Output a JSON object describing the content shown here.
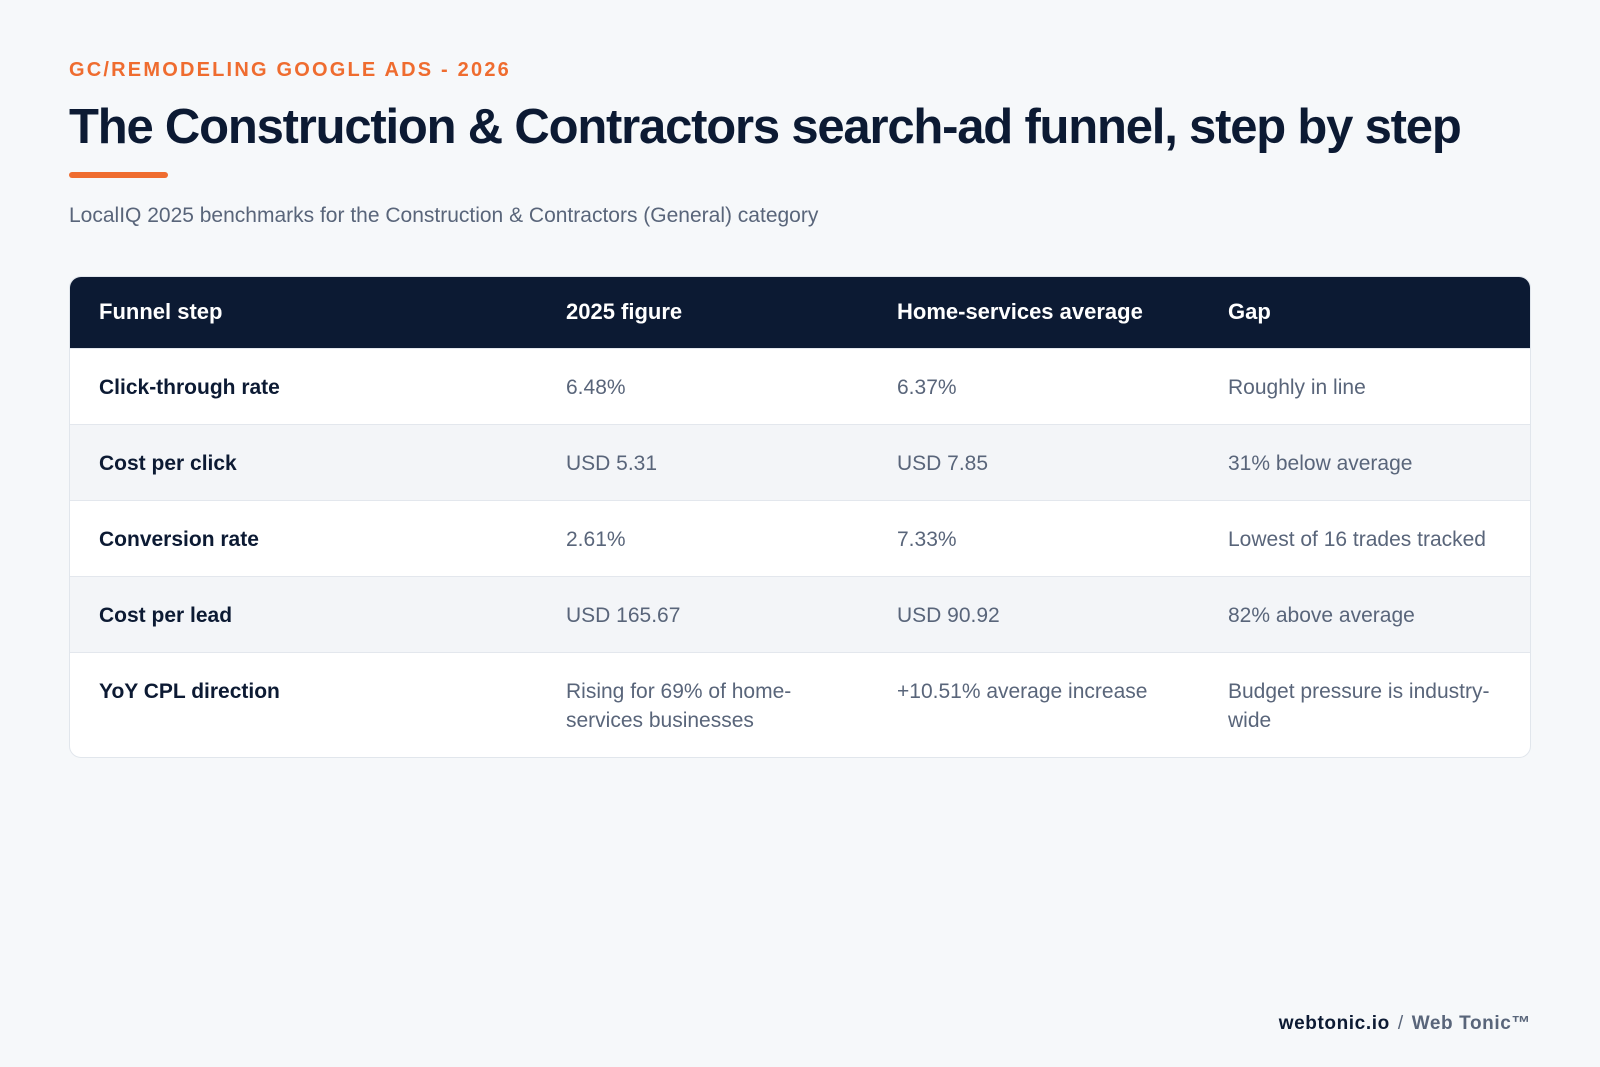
{
  "header": {
    "eyebrow": "GC/REMODELING GOOGLE ADS - 2026",
    "title": "The Construction & Contractors search-ad funnel, step by step",
    "subtitle": "LocalIQ 2025 benchmarks for the Construction & Contractors (General) category"
  },
  "table": {
    "columns": [
      "Funnel step",
      "2025 figure",
      "Home-services average",
      "Gap"
    ],
    "rows": [
      [
        "Click-through rate",
        "6.48%",
        "6.37%",
        "Roughly in line"
      ],
      [
        "Cost per click",
        "USD 5.31",
        "USD 7.85",
        "31% below average"
      ],
      [
        "Conversion rate",
        "2.61%",
        "7.33%",
        "Lowest of 16 trades tracked"
      ],
      [
        "Cost per lead",
        "USD 165.67",
        "USD 90.92",
        "82% above average"
      ],
      [
        "YoY CPL direction",
        "Rising for 69% of home-services businesses",
        "+10.51% average increase",
        "Budget pressure is industry-wide"
      ]
    ]
  },
  "footer": {
    "site": "webtonic.io",
    "separator": "/",
    "brand": "Web Tonic™"
  },
  "colors": {
    "accent": "#ef6c2f",
    "navy": "#0c1a33",
    "muted_text": "#59657a",
    "background": "#f6f8fa"
  }
}
